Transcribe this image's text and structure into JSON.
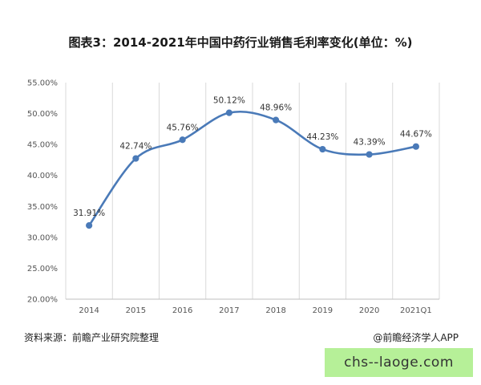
{
  "title": "图表3：2014-2021年中国中药行业销售毛利率变化(单位：%)",
  "source": "资料来源：前瞻产业研究院整理",
  "credit": "@前瞻经济学人APP",
  "banner": "chs--laoge.com",
  "chart_data": {
    "type": "line",
    "title": "图表3：2014-2021年中国中药行业销售毛利率变化(单位：%)",
    "categories": [
      "2014",
      "2015",
      "2016",
      "2017",
      "2018",
      "2019",
      "2020",
      "2021Q1"
    ],
    "series": [
      {
        "values": [
          31.91,
          42.74,
          45.76,
          50.12,
          48.96,
          44.23,
          43.39,
          44.67
        ],
        "labels": [
          "31.91%",
          "42.74%",
          "45.76%",
          "50.12%",
          "48.96%",
          "44.23%",
          "43.39%",
          "44.67%"
        ],
        "color": "#4a7ab8"
      }
    ],
    "ylim": [
      20,
      55
    ],
    "yticks": [
      20,
      25,
      30,
      35,
      40,
      45,
      50,
      55
    ],
    "ytick_labels": [
      "20.00%",
      "25.00%",
      "30.00%",
      "35.00%",
      "40.00%",
      "45.00%",
      "50.00%",
      "55.00%"
    ],
    "grid": "vertical",
    "smooth": true
  }
}
